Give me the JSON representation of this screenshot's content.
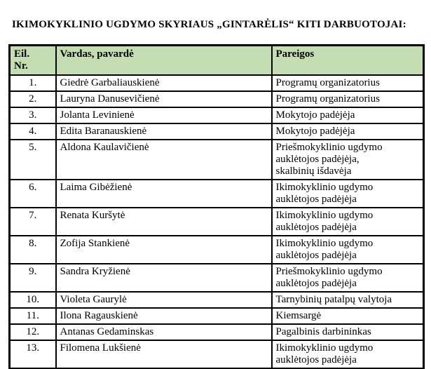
{
  "title": "IKIMOKYKLINIO UGDYMO SKYRIAUS „GINTARĖLIS“ KITI DARBUOTOJAI:",
  "table": {
    "header_bg": "#c5ddb2",
    "border_color": "#000000",
    "columns": [
      "Eil.\nNr.",
      "Vardas, pavardė",
      "Pareigos"
    ],
    "rows": [
      {
        "nr": "1.",
        "name": "Giedrė Garbaliauskienė",
        "position": "Programų organizatorius"
      },
      {
        "nr": "2.",
        "name": "Lauryna Danusevičienė",
        "position": "Programų organizatorius"
      },
      {
        "nr": "3.",
        "name": "Jolanta Levinienė",
        "position": "Mokytojo padėjėja"
      },
      {
        "nr": "4.",
        "name": "Edita Baranauskienė",
        "position": "Mokytojo padėjėja"
      },
      {
        "nr": "5.",
        "name": "Aldona Kaulavičienė",
        "position": "Priešmokyklinio ugdymo\nauklėtojos padėjėja,\nskalbinių išdavėja"
      },
      {
        "nr": "6.",
        "name": "Laima Gibėžienė",
        "position": "Ikimokyklinio ugdymo\nauklėtojos padėjėja"
      },
      {
        "nr": "7.",
        "name": "Renata Kuršytė",
        "position": "Ikimokyklinio ugdymo\nauklėtojos padėjėja"
      },
      {
        "nr": "8.",
        "name": "Zofija Stankienė",
        "position": "Ikimokyklinio ugdymo\nauklėtojos padėjėja"
      },
      {
        "nr": "9.",
        "name": "Sandra Kryžienė",
        "position": "Priešmokyklinio ugdymo\nauklėtojos padėjėja"
      },
      {
        "nr": "10.",
        "name": "Violeta Gaurylė",
        "position": "Tarnybinių patalpų valytoja"
      },
      {
        "nr": "11.",
        "name": "Ilona Ragauskienė",
        "position": "Kiemsargė"
      },
      {
        "nr": "12.",
        "name": "Antanas Gedaminskas",
        "position": "Pagalbinis darbininkas"
      },
      {
        "nr": "13.",
        "name": "Filomena Lukšienė",
        "position": "Ikimokyklinio ugdymo\nauklėtojos padėjėja"
      }
    ]
  }
}
